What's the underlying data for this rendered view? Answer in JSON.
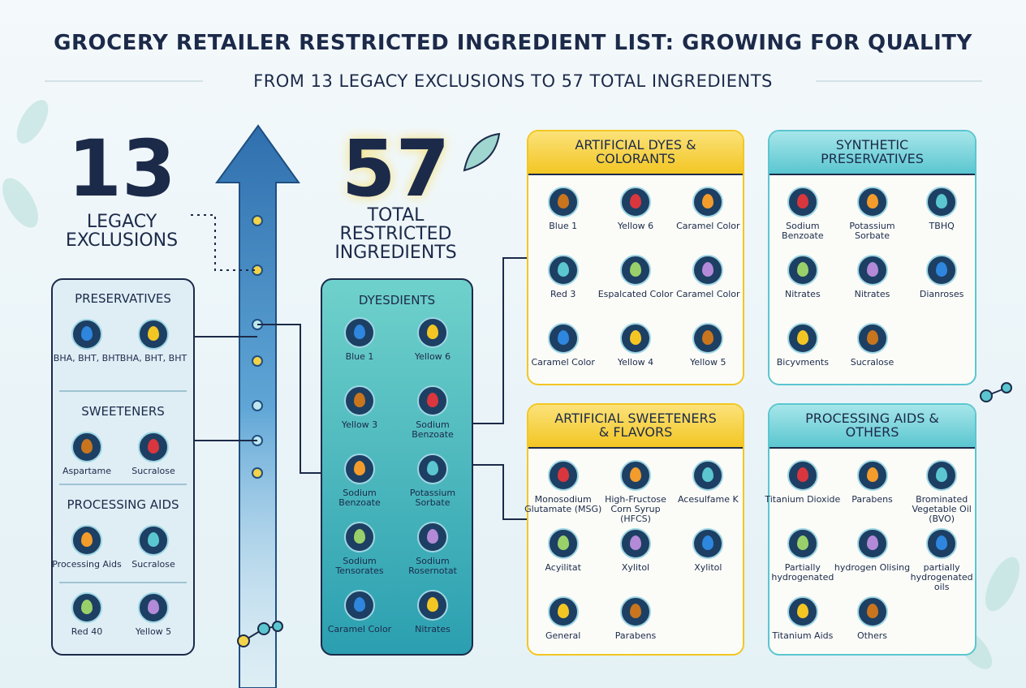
{
  "header": {
    "title": "GROCERY RETAILER RESTRICTED INGREDIENT LIST: GROWING FOR QUALITY",
    "subtitle": "FROM 13 LEGACY EXCLUSIONS TO 57 TOTAL INGREDIENTS"
  },
  "legacy": {
    "count": 13,
    "label": "LEGACY EXCLUSIONS"
  },
  "total": {
    "count": 57,
    "label": "TOTAL RESTRICTED INGREDIENTS"
  },
  "legacy_panel": {
    "groups": [
      {
        "heading": "PRESERVATIVES",
        "items": [
          "BHA, BHT, BHT",
          "BHA, BHT, BHT"
        ]
      },
      {
        "heading": "SWEETENERS",
        "items": [
          "Aspartame",
          "Sucralose"
        ]
      },
      {
        "heading": "PROCESSING AIDS",
        "items": [
          "Processing Aids",
          "Sucralose"
        ]
      },
      {
        "items": [
          "Red 40",
          "Yellow 5"
        ]
      }
    ]
  },
  "total_panel": {
    "heading": "DYESDIENTS",
    "items": [
      "Blue 1",
      "Yellow 6",
      "Yellow 3",
      "Sodium Benzoate",
      "Sodium Benzoate",
      "Potassium Sorbate",
      "Sodium Tensorates",
      "Sodium Rosernotat",
      "Caramel Color",
      "Nitrates"
    ]
  },
  "categories": [
    {
      "title": "ARTIFICIAL DYES & COLORANTS",
      "items": [
        "Blue 1",
        "Yellow 6",
        "Caramel Color",
        "Red 3",
        "Espalcated Color",
        "Caramel Color",
        "Caramel Color",
        "Yellow 4",
        "Yellow 5"
      ]
    },
    {
      "title": "SYNTHETIC PRESERVATIVES",
      "items": [
        "Sodium Benzoate",
        "Potassium Sorbate",
        "TBHQ",
        "Nitrates",
        "Nitrates",
        "Dianroses",
        "Bicyvments",
        "Sucralose"
      ]
    },
    {
      "title": "ARTIFICIAL SWEETENERS & FLAVORS",
      "items": [
        "Monosodium Glutamate (MSG)",
        "High-Fructose Corn Syrup (HFCS)",
        "Acesulfame K",
        "Acyilitat",
        "Xylitol",
        "Xylitol",
        "General",
        "Parabens"
      ]
    },
    {
      "title": "PROCESSING AIDS & OTHERS",
      "items": [
        "Titanium Dioxide",
        "Parabens",
        "Brominated Vegetable Oil (BVO)",
        "Partially hydrogenated",
        "hydrogen Olising",
        "partially hydrogenated oils",
        "Titanium Aids",
        "Others"
      ]
    }
  ]
}
